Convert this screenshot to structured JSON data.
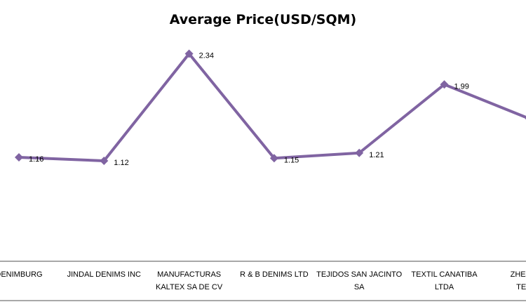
{
  "chart_data": {
    "type": "line",
    "title": "Average Price(USD/SQM)",
    "xlabel": "",
    "ylabel": "",
    "categories": [
      [
        "DENIMBURG"
      ],
      [
        "JINDAL DENIMS  INC"
      ],
      [
        "MANUFACTURAS",
        "KALTEX SA DE CV"
      ],
      [
        "R & B DENIMS  LTD"
      ],
      [
        "TEJIDOS SAN JACINTO",
        "SA"
      ],
      [
        "TEXTIL CANATIBA",
        "LTDA"
      ],
      [
        "ZHEJIANG",
        "TEXTIL"
      ]
    ],
    "series": [
      {
        "name": "Average Price(USD/SQM)",
        "values": [
          1.16,
          1.12,
          2.34,
          1.15,
          1.21,
          1.99,
          1.6
        ],
        "labels": [
          "1.16",
          "1.12",
          "2.34",
          "1.15",
          "1.21",
          "1.99",
          ""
        ],
        "color": "#8064a2"
      }
    ],
    "ylim": [
      0,
      2.95
    ],
    "grid": false,
    "legend": "none"
  }
}
